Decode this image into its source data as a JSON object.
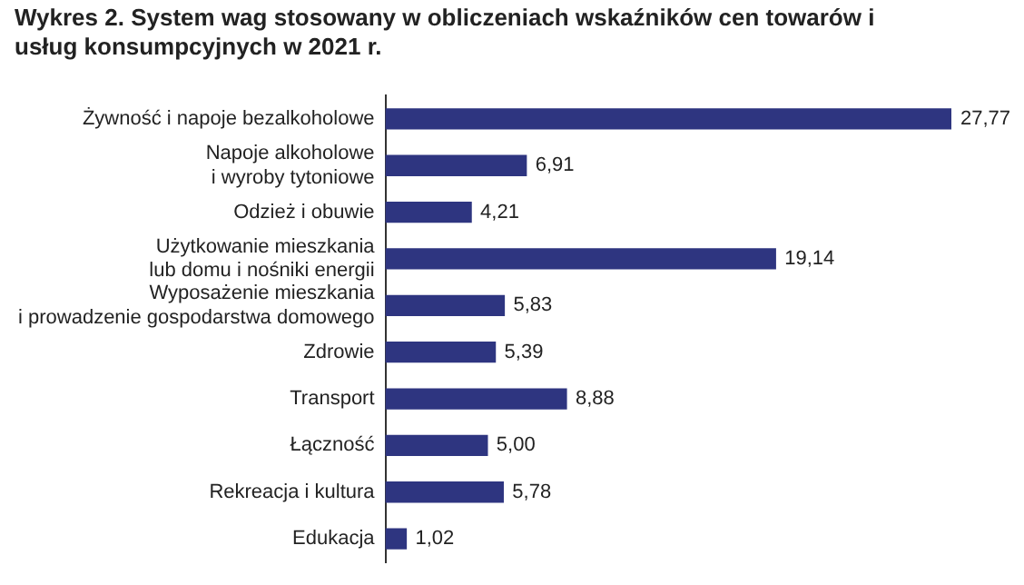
{
  "chart_data": {
    "type": "bar",
    "orientation": "horizontal",
    "title": "Wykres 2. System wag stosowany w obliczeniach wskaźników cen towarów i usług konsumpcyjnych w 2021 r.",
    "categories": [
      "Żywność i napoje bezalkoholowe",
      "Napoje alkoholowe\ni wyroby tytoniowe",
      "Odzież i obuwie",
      "Użytkowanie mieszkania\nlub domu i nośniki energii",
      "Wyposażenie mieszkania\ni prowadzenie gospodarstwa domowego",
      "Zdrowie",
      "Transport",
      "Łączność",
      "Rekreacja i kultura",
      "Edukacja"
    ],
    "values": [
      27.77,
      6.91,
      4.21,
      19.14,
      5.83,
      5.39,
      8.88,
      5.0,
      5.78,
      1.02
    ],
    "value_labels": [
      "27,77",
      "6,91",
      "4,21",
      "19,14",
      "5,83",
      "5,39",
      "8,88",
      "5,00",
      "5,78",
      "1,02"
    ],
    "color": "#2e3580",
    "grid": false,
    "legend": false
  }
}
